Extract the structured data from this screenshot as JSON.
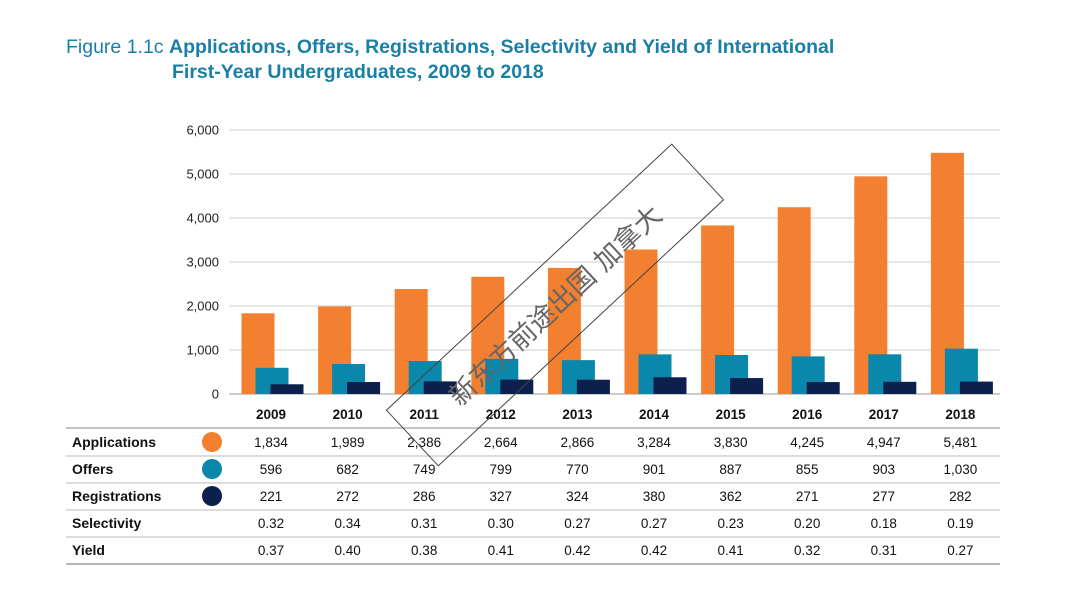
{
  "title": {
    "prefix": "Figure 1.1c",
    "line1": "Applications, Offers, Registrations, Selectivity and Yield of International",
    "line2": "First-Year Undergraduates, 2009 to 2018"
  },
  "colors": {
    "applications": "#f28030",
    "offers": "#0a87ab",
    "registrations": "#0c1f4d",
    "title": "#1a7fa6",
    "grid": "#cccccc"
  },
  "watermark": "新东方前途出国 加拿大",
  "chart_data": {
    "type": "bar",
    "title": "Applications, Offers, Registrations, Selectivity and Yield of International First-Year Undergraduates, 2009 to 2018",
    "categories": [
      "2009",
      "2010",
      "2011",
      "2012",
      "2013",
      "2014",
      "2015",
      "2016",
      "2017",
      "2018"
    ],
    "ylim": [
      0,
      6000
    ],
    "yticks": [
      0,
      1000,
      2000,
      3000,
      4000,
      5000,
      6000
    ],
    "ytick_labels": [
      "0",
      "1,000",
      "2,000",
      "3,000",
      "4,000",
      "5,000",
      "6,000"
    ],
    "series": [
      {
        "name": "Applications",
        "color": "#f28030",
        "values": [
          1834,
          1989,
          2386,
          2664,
          2866,
          3284,
          3830,
          4245,
          4947,
          5481
        ]
      },
      {
        "name": "Offers",
        "color": "#0a87ab",
        "values": [
          596,
          682,
          749,
          799,
          770,
          901,
          887,
          855,
          903,
          1030
        ]
      },
      {
        "name": "Registrations",
        "color": "#0c1f4d",
        "values": [
          221,
          272,
          286,
          327,
          324,
          380,
          362,
          271,
          277,
          282
        ]
      }
    ],
    "table": [
      {
        "label": "Applications",
        "marker": "#f28030",
        "cells": [
          "1,834",
          "1,989",
          "2,386",
          "2,664",
          "2,866",
          "3,284",
          "3,830",
          "4,245",
          "4,947",
          "5,481"
        ]
      },
      {
        "label": "Offers",
        "marker": "#0a87ab",
        "cells": [
          "596",
          "682",
          "749",
          "799",
          "770",
          "901",
          "887",
          "855",
          "903",
          "1,030"
        ]
      },
      {
        "label": "Registrations",
        "marker": "#0c1f4d",
        "cells": [
          "221",
          "272",
          "286",
          "327",
          "324",
          "380",
          "362",
          "271",
          "277",
          "282"
        ]
      },
      {
        "label": "Selectivity",
        "marker": null,
        "cells": [
          "0.32",
          "0.34",
          "0.31",
          "0.30",
          "0.27",
          "0.27",
          "0.23",
          "0.20",
          "0.18",
          "0.19"
        ]
      },
      {
        "label": "Yield",
        "marker": null,
        "cells": [
          "0.37",
          "0.40",
          "0.38",
          "0.41",
          "0.42",
          "0.42",
          "0.41",
          "0.32",
          "0.31",
          "0.27"
        ]
      }
    ]
  }
}
